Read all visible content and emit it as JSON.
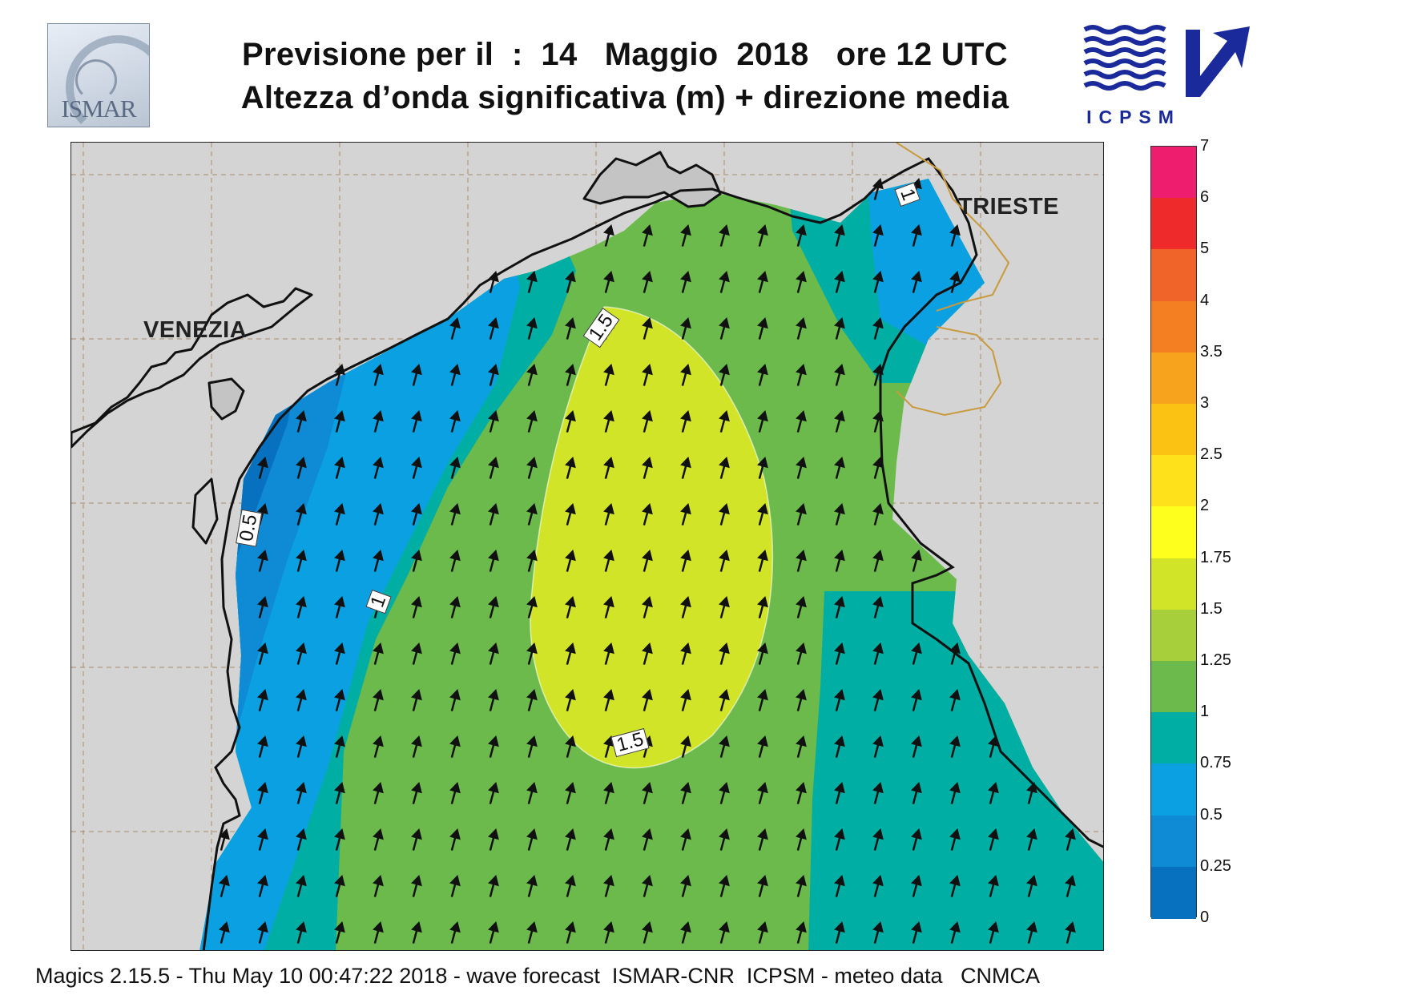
{
  "header": {
    "title_line1": "Previsione per il  :  14   Maggio  2018   ore 12 UTC",
    "title_line2": "Altezza d’onda significativa (m) + direzione media"
  },
  "logos": {
    "left": "ISMAR",
    "right": "ICPSM"
  },
  "map": {
    "cities": [
      "VENEZIA",
      "TRIESTE"
    ],
    "contour_labels": [
      "1.5",
      "0.5",
      "1",
      "1.5",
      "1"
    ],
    "arrow_direction": "north-north-east"
  },
  "legend": {
    "labels": [
      "7",
      "6",
      "5",
      "4",
      "3.5",
      "3",
      "2.5",
      "2",
      "1.75",
      "1.5",
      "1.25",
      "1",
      "0.75",
      "0.5",
      "0.25",
      "0"
    ],
    "colors": [
      "#ef1d6e",
      "#ee2a2a",
      "#f0642a",
      "#f47e22",
      "#f7a31d",
      "#fbc214",
      "#fee11a",
      "#ffff1e",
      "#d2e427",
      "#a7cf3b",
      "#6cba4c",
      "#00aea4",
      "#0ba0e2",
      "#0f8bd6",
      "#0771c0",
      "#075da8"
    ]
  },
  "footer": {
    "text": "Magics 2.15.5 - Thu May 10 00:47:22 2018 - wave forecast  ISMAR-CNR  ICPSM - meteo data   CNMCA"
  }
}
